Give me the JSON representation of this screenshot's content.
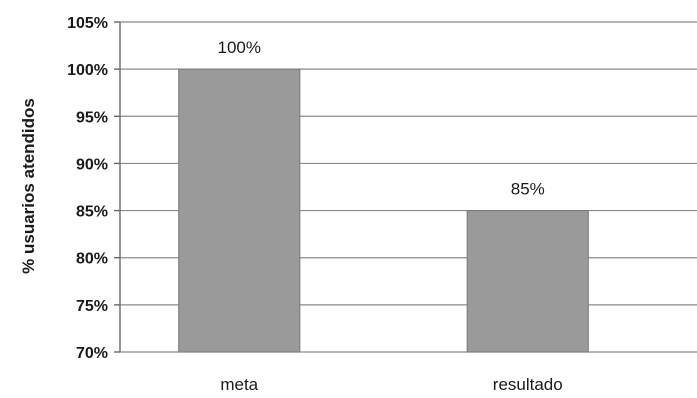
{
  "chart_data": {
    "type": "bar",
    "categories": [
      "meta",
      "resultado"
    ],
    "values": [
      100,
      85
    ],
    "data_labels": [
      "100%",
      "85%"
    ],
    "ylabel": "% usuarios atendidos",
    "xlabel": "",
    "ylim": [
      70,
      105
    ],
    "yticks": [
      70,
      75,
      80,
      85,
      90,
      95,
      100,
      105
    ],
    "ytick_labels": [
      "70%",
      "75%",
      "80%",
      "85%",
      "90%",
      "95%",
      "100%",
      "105%"
    ],
    "grid": true,
    "legend": "none",
    "bar_color": "#9a9a9a"
  }
}
